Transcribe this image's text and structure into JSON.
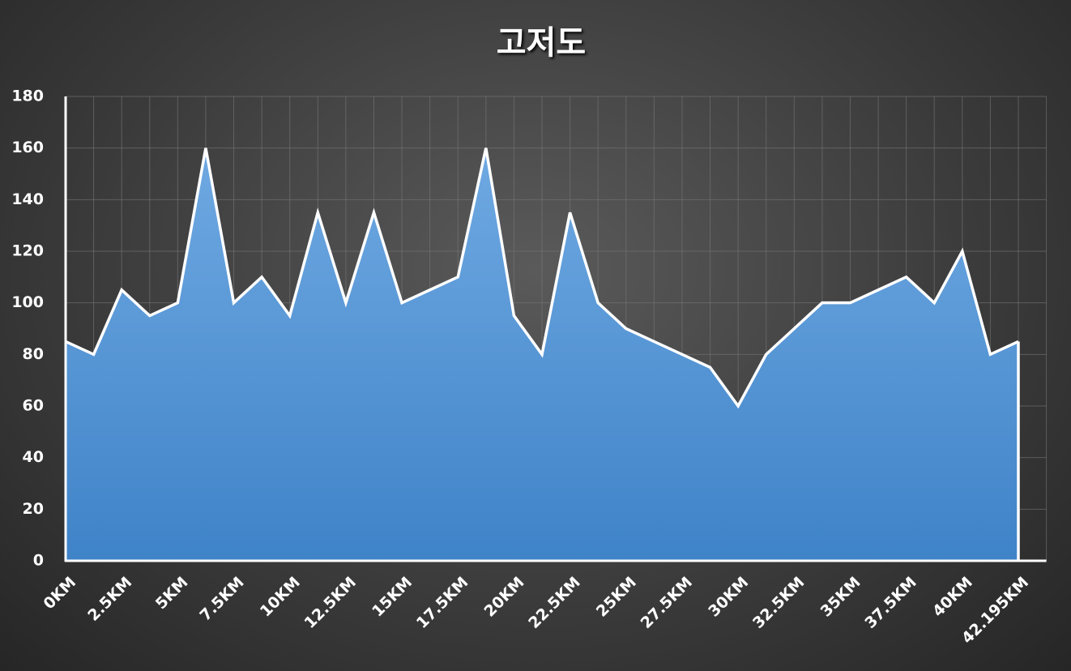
{
  "chart_data": {
    "type": "area",
    "title": "고저도",
    "categories": [
      "0KM",
      null,
      "2.5KM",
      null,
      "5KM",
      null,
      "7.5KM",
      null,
      "10KM",
      null,
      "12.5KM",
      null,
      "15KM",
      null,
      "17.5KM",
      null,
      "20KM",
      null,
      "22.5KM",
      null,
      "25KM",
      null,
      "27.5KM",
      null,
      "30KM",
      null,
      "32.5KM",
      null,
      "35KM",
      null,
      "37.5KM",
      null,
      "40KM",
      null,
      "42.195KM"
    ],
    "values": [
      85,
      80,
      105,
      95,
      100,
      160,
      100,
      110,
      95,
      135,
      100,
      135,
      100,
      105,
      110,
      160,
      95,
      80,
      135,
      100,
      90,
      85,
      80,
      75,
      60,
      80,
      90,
      100,
      100,
      105,
      110,
      100,
      120,
      80,
      85
    ],
    "color": "#5b9bd5",
    "line_color": "#ffffff",
    "ylim": [
      0,
      180
    ],
    "yticks": [
      0,
      20,
      40,
      60,
      80,
      100,
      120,
      140,
      160,
      180
    ],
    "grid": true
  }
}
